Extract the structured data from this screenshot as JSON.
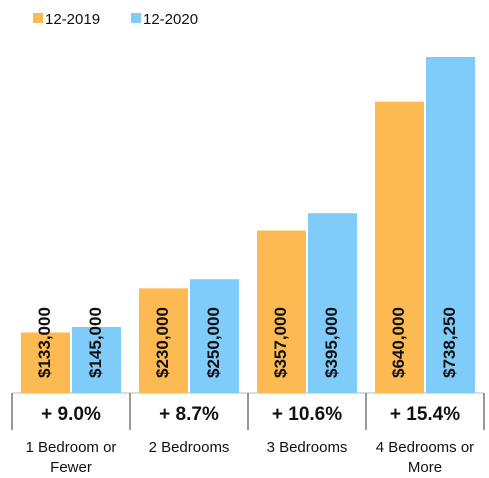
{
  "chart_data": {
    "type": "bar",
    "categories": [
      "1 Bedroom or Fewer",
      "2 Bedrooms",
      "3 Bedrooms",
      "4 Bedrooms or More"
    ],
    "series": [
      {
        "name": "12-2019",
        "color": "#fdba52",
        "values": [
          133000,
          230000,
          357000,
          640000
        ],
        "value_labels": [
          "$133,000",
          "$230,000",
          "$357,000",
          "$640,000"
        ]
      },
      {
        "name": "12-2020",
        "color": "#7fcbfa",
        "values": [
          145000,
          250000,
          395000,
          738250
        ],
        "value_labels": [
          "$145,000",
          "$250,000",
          "$395,000",
          "$738,250"
        ]
      }
    ],
    "annotations": [
      "+ 9.0%",
      "+ 8.7%",
      "+ 10.6%",
      "+ 15.4%"
    ],
    "legend": "top-left"
  }
}
